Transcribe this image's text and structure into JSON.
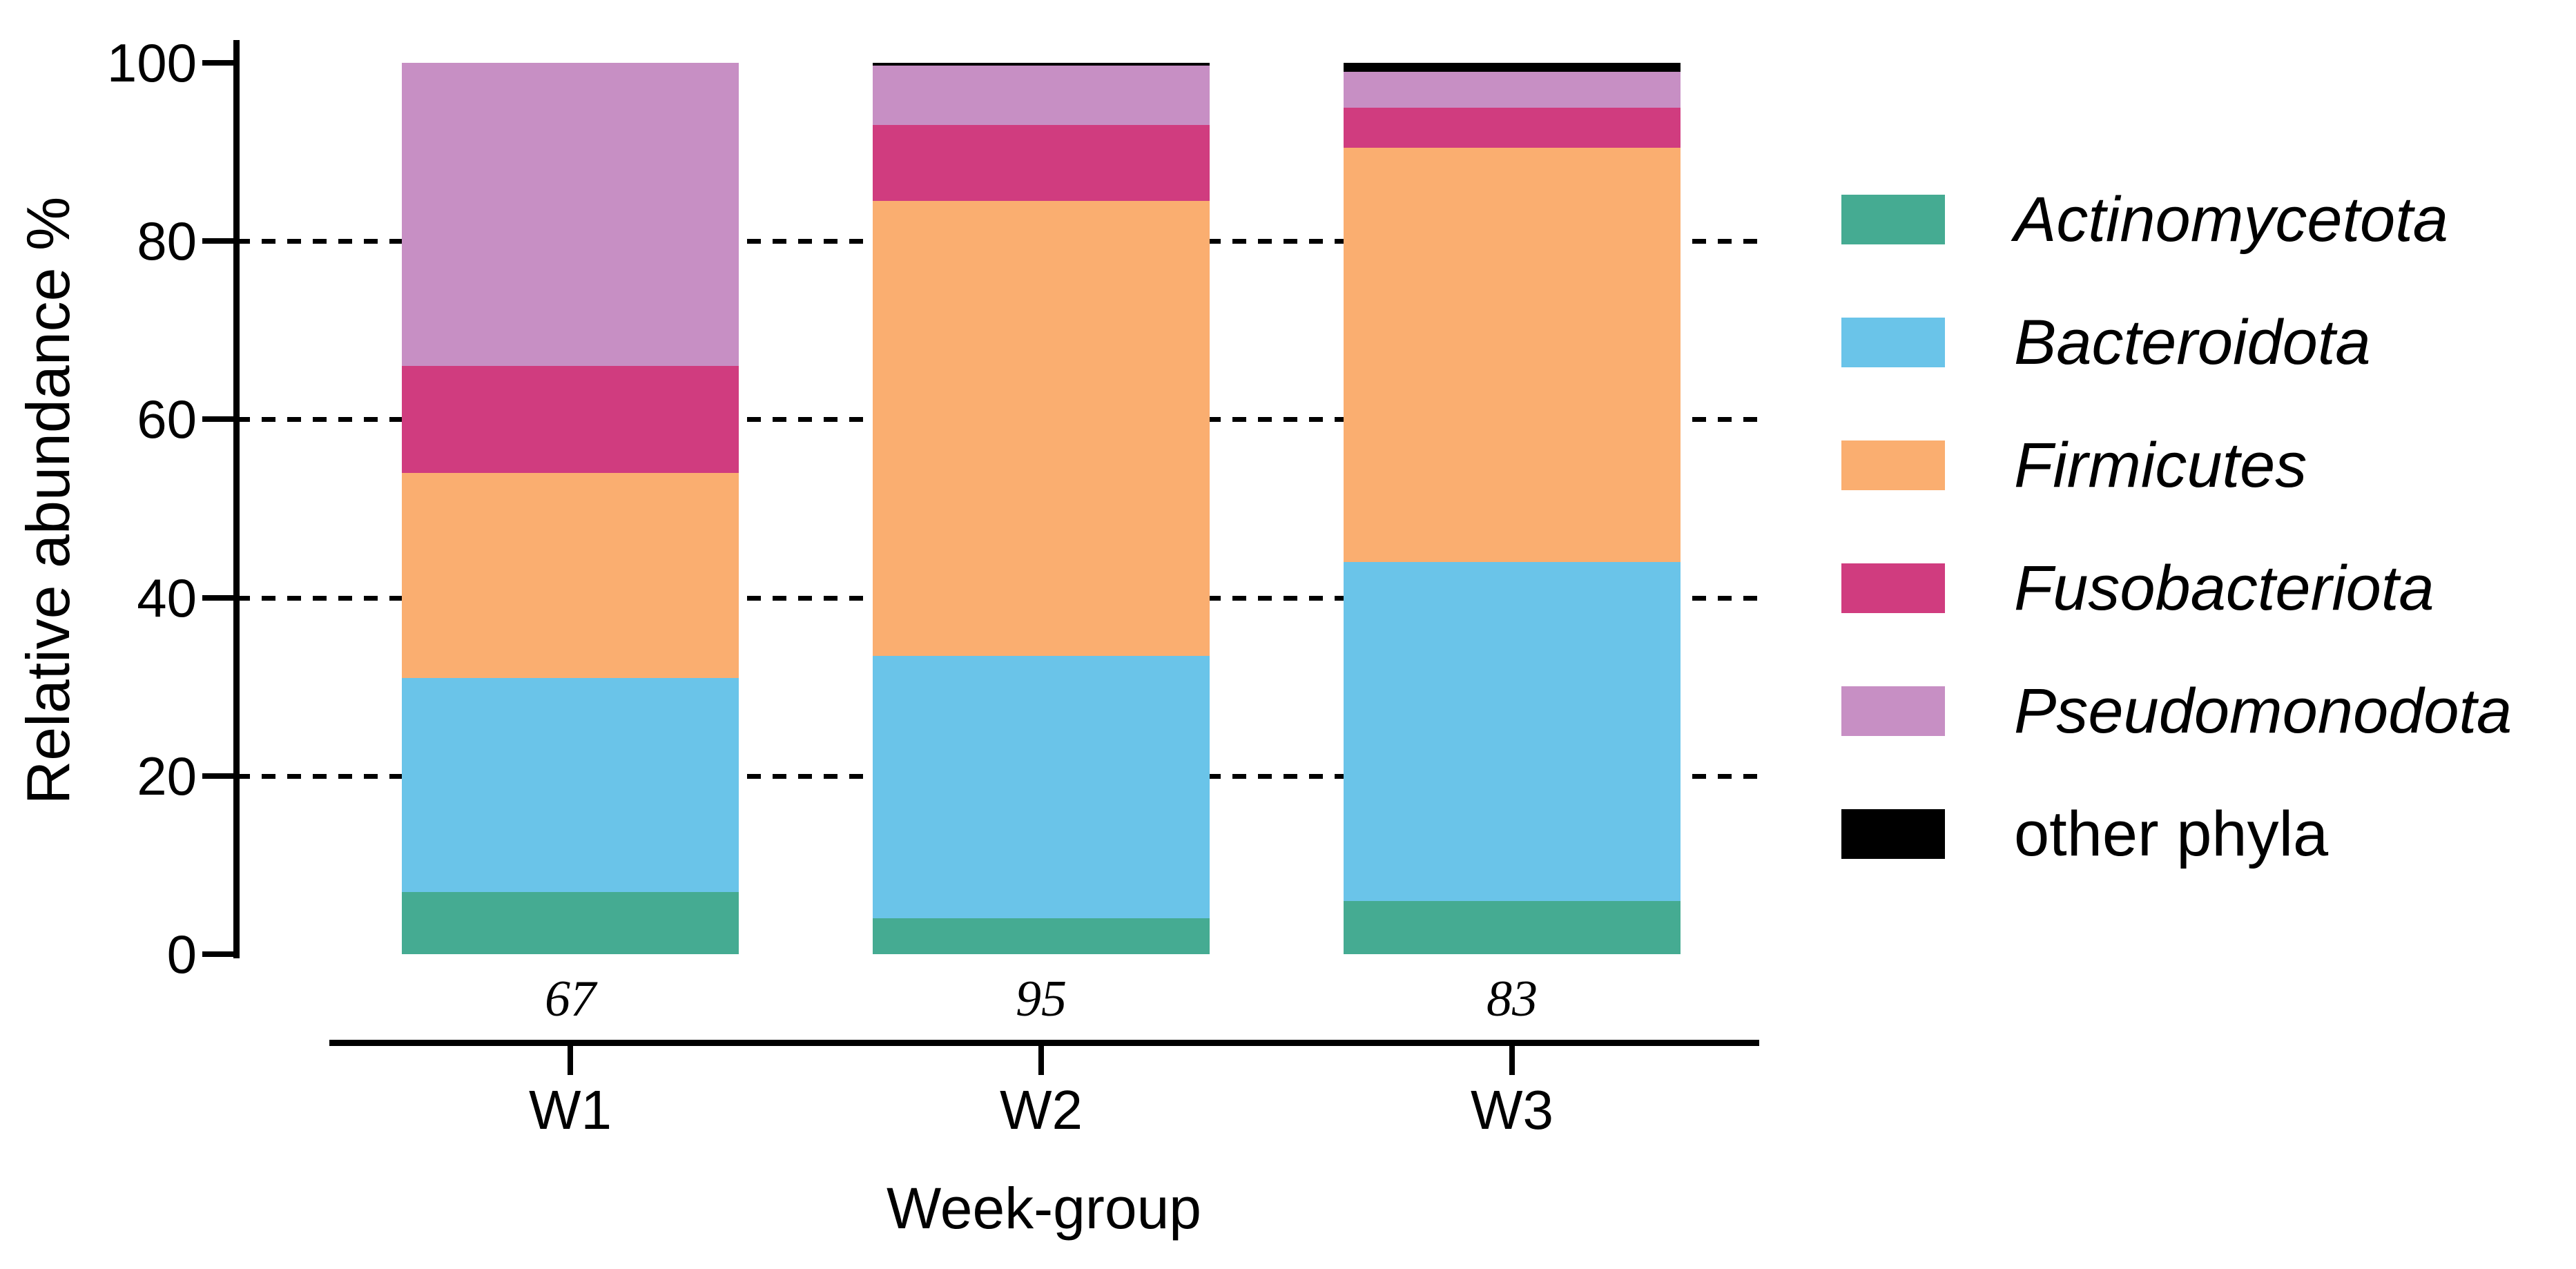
{
  "chart_data": {
    "type": "bar",
    "stacked": true,
    "xlabel": "Week-group",
    "ylabel": "Relative abundance %",
    "categories": [
      "W1",
      "W2",
      "W3"
    ],
    "sample_sizes": [
      "67",
      "95",
      "83"
    ],
    "ylim": [
      0,
      100
    ],
    "yticks": [
      0,
      20,
      40,
      60,
      80,
      100
    ],
    "gridlines_at": [
      20,
      40,
      60,
      80
    ],
    "grid_style": "dotted",
    "legend_position": "right",
    "bar_color_black": "#000000",
    "series": [
      {
        "name": "Actinomycetota",
        "color": "#45AB92",
        "italic": true,
        "values": [
          7,
          4,
          6
        ]
      },
      {
        "name": "Bacteroidota",
        "color": "#6AC4E9",
        "italic": true,
        "values": [
          24,
          29.5,
          38
        ]
      },
      {
        "name": "Firmicutes",
        "color": "#FAAE70",
        "italic": true,
        "values": [
          23,
          51,
          46.5
        ]
      },
      {
        "name": "Fusobacteriota",
        "color": "#D03C7F",
        "italic": true,
        "values": [
          12,
          8.5,
          4.5
        ]
      },
      {
        "name": "Pseudomonodota",
        "color": "#C78FC4",
        "italic": true,
        "values": [
          34,
          6.7,
          4
        ]
      },
      {
        "name": "other phyla",
        "color": "#000000",
        "italic": false,
        "values": [
          0,
          0.3,
          1
        ]
      }
    ]
  },
  "layout_note_visible_text_only": {
    "y_axis_tick_labels": [
      "100",
      "80",
      "60",
      "40",
      "20",
      "0"
    ],
    "x_axis_tick_labels": [
      "W1",
      "W2",
      "W3"
    ],
    "above_axis_numbers": [
      "67",
      "95",
      "83"
    ]
  }
}
